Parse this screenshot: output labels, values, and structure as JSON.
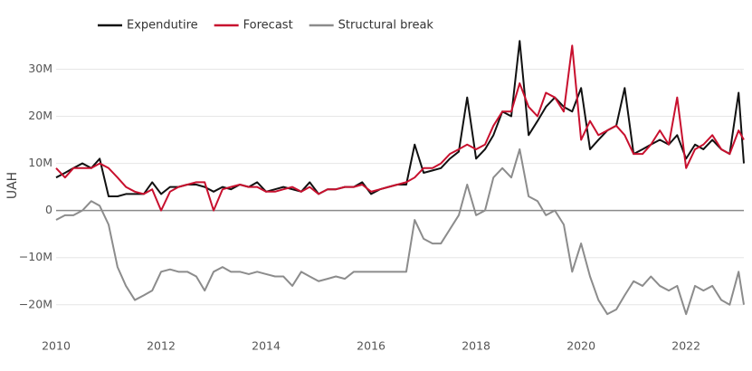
{
  "chart_data": {
    "type": "line",
    "y_label": "UAH",
    "x": [
      2010,
      2010.17,
      2010.33,
      2010.5,
      2010.67,
      2010.83,
      2011,
      2011.17,
      2011.33,
      2011.5,
      2011.67,
      2011.83,
      2012,
      2012.17,
      2012.33,
      2012.5,
      2012.67,
      2012.83,
      2013,
      2013.17,
      2013.33,
      2013.5,
      2013.67,
      2013.83,
      2014,
      2014.17,
      2014.33,
      2014.5,
      2014.67,
      2014.83,
      2015,
      2015.17,
      2015.33,
      2015.5,
      2015.67,
      2015.83,
      2016,
      2016.17,
      2016.33,
      2016.5,
      2016.67,
      2016.83,
      2017,
      2017.17,
      2017.33,
      2017.5,
      2017.67,
      2017.83,
      2018,
      2018.17,
      2018.33,
      2018.5,
      2018.67,
      2018.83,
      2019,
      2019.17,
      2019.33,
      2019.5,
      2019.67,
      2019.83,
      2020,
      2020.17,
      2020.33,
      2020.5,
      2020.67,
      2020.83,
      2021,
      2021.17,
      2021.33,
      2021.5,
      2021.67,
      2021.83,
      2022,
      2022.17,
      2022.33,
      2022.5,
      2022.67,
      2022.83,
      2023,
      2023.1
    ],
    "series": [
      {
        "name": "Expendutire",
        "color": "#111111",
        "values": [
          7,
          8,
          9,
          10,
          9,
          11,
          3,
          3,
          3.5,
          3.5,
          3.5,
          6,
          3.5,
          5,
          5,
          5.5,
          5.5,
          5,
          4,
          5,
          4.5,
          5.5,
          5,
          6,
          4,
          4.5,
          5,
          4.5,
          4,
          6,
          3.5,
          4.5,
          4.5,
          5,
          5,
          6,
          3.5,
          4.5,
          5,
          5.5,
          5.5,
          14,
          8,
          8.5,
          9,
          11,
          12.5,
          24,
          11,
          13,
          16,
          21,
          20,
          36,
          16,
          19,
          22,
          24,
          22,
          21,
          26,
          13,
          15,
          17,
          18,
          26,
          12,
          13,
          14,
          15,
          14,
          16,
          11,
          14,
          13,
          15,
          13,
          12,
          25,
          10
        ]
      },
      {
        "name": "Forecast",
        "color": "#c8102e",
        "values": [
          9,
          7,
          9,
          9,
          9,
          10,
          9,
          7,
          5,
          4,
          3.5,
          4.5,
          0,
          4,
          5,
          5.5,
          6,
          6,
          0,
          4.5,
          5,
          5.5,
          5,
          5,
          4,
          4,
          4.5,
          5,
          4,
          5,
          3.5,
          4.5,
          4.5,
          5,
          5,
          5.5,
          4,
          4.5,
          5,
          5.5,
          6,
          7,
          9,
          9,
          10,
          12,
          13,
          14,
          13,
          14,
          18,
          21,
          21,
          27,
          22,
          20,
          25,
          24,
          21,
          35,
          15,
          19,
          16,
          17,
          18,
          16,
          12,
          12,
          14,
          17,
          14,
          24,
          9,
          13,
          14,
          16,
          13,
          12,
          17,
          15
        ]
      },
      {
        "name": "Structural break",
        "color": "#8c8c8c",
        "values": [
          -2,
          -1,
          -1,
          0,
          2,
          1,
          -3,
          -12,
          -16,
          -19,
          -18,
          -17,
          -13,
          -12.5,
          -13,
          -13,
          -14,
          -17,
          -13,
          -12,
          -13,
          -13,
          -13.5,
          -13,
          -13.5,
          -14,
          -14,
          -16,
          -13,
          -14,
          -15,
          -14.5,
          -14,
          -14.5,
          -13,
          -13,
          -13,
          -13,
          -13,
          -13,
          -13,
          -2,
          -6,
          -7,
          -7,
          -4,
          -1,
          5.5,
          -1,
          0,
          7,
          9,
          7,
          13,
          3,
          2,
          -1,
          0,
          -3,
          -13,
          -7,
          -14,
          -19,
          -22,
          -21,
          -18,
          -15,
          -16,
          -14,
          -16,
          -17,
          -16,
          -22,
          -16,
          -17,
          -16,
          -19,
          -20,
          -13,
          -20
        ]
      }
    ],
    "xlim": [
      2010,
      2023.1
    ],
    "xticks": [
      2010,
      2012,
      2014,
      2016,
      2018,
      2020,
      2022
    ],
    "ylim": [
      -26,
      37
    ],
    "yticks": [
      {
        "value": -20,
        "label": "−20M"
      },
      {
        "value": -10,
        "label": "−10M"
      },
      0,
      {
        "value": 10,
        "label": "10M"
      },
      {
        "value": 20,
        "label": "20M"
      },
      {
        "value": 30,
        "label": "30M"
      }
    ],
    "grid": true,
    "legend": "top"
  }
}
